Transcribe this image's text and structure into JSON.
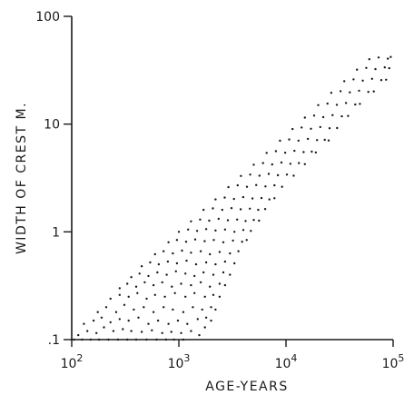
{
  "chart_data": {
    "type": "scatter",
    "title": "",
    "xlabel": "AGE-YEARS",
    "ylabel": "WIDTH OF CREST M.",
    "x_scale": "log",
    "y_scale": "log",
    "xlim": [
      100,
      100000
    ],
    "ylim": [
      0.1,
      100
    ],
    "grid": false,
    "x_ticks": [
      {
        "value": 100,
        "base": "10",
        "exp": "2"
      },
      {
        "value": 1000,
        "base": "10",
        "exp": "3"
      },
      {
        "value": 10000,
        "base": "10",
        "exp": "4"
      },
      {
        "value": 100000,
        "base": "10",
        "exp": "5"
      }
    ],
    "y_ticks": [
      {
        "value": 0.1,
        "label": ".1"
      },
      {
        "value": 1,
        "label": "1"
      },
      {
        "value": 10,
        "label": "10"
      },
      {
        "value": 100,
        "label": "100"
      }
    ],
    "series": [
      {
        "marker": "dot",
        "color": "#1a1a1a",
        "points": [
          [
            105,
            0.1
          ],
          [
            125,
            0.1
          ],
          [
            150,
            0.1
          ],
          [
            180,
            0.1
          ],
          [
            220,
            0.1
          ],
          [
            270,
            0.1
          ],
          [
            330,
            0.1
          ],
          [
            400,
            0.1
          ],
          [
            500,
            0.1
          ],
          [
            620,
            0.1
          ],
          [
            760,
            0.1
          ],
          [
            900,
            0.1
          ],
          [
            1100,
            0.1
          ],
          [
            115,
            0.11
          ],
          [
            140,
            0.12
          ],
          [
            170,
            0.115
          ],
          [
            200,
            0.13
          ],
          [
            245,
            0.12
          ],
          [
            300,
            0.125
          ],
          [
            360,
            0.12
          ],
          [
            450,
            0.118
          ],
          [
            560,
            0.122
          ],
          [
            700,
            0.115
          ],
          [
            850,
            0.118
          ],
          [
            1050,
            0.115
          ],
          [
            1300,
            0.12
          ],
          [
            1550,
            0.11
          ],
          [
            1750,
            0.13
          ],
          [
            130,
            0.14
          ],
          [
            160,
            0.15
          ],
          [
            190,
            0.16
          ],
          [
            230,
            0.145
          ],
          [
            280,
            0.155
          ],
          [
            340,
            0.15
          ],
          [
            420,
            0.16
          ],
          [
            520,
            0.14
          ],
          [
            640,
            0.15
          ],
          [
            800,
            0.14
          ],
          [
            980,
            0.15
          ],
          [
            1200,
            0.14
          ],
          [
            1500,
            0.155
          ],
          [
            1800,
            0.16
          ],
          [
            2000,
            0.15
          ],
          [
            175,
            0.18
          ],
          [
            210,
            0.2
          ],
          [
            260,
            0.18
          ],
          [
            310,
            0.21
          ],
          [
            380,
            0.19
          ],
          [
            470,
            0.2
          ],
          [
            580,
            0.18
          ],
          [
            720,
            0.2
          ],
          [
            880,
            0.19
          ],
          [
            1100,
            0.18
          ],
          [
            1350,
            0.2
          ],
          [
            1650,
            0.19
          ],
          [
            2000,
            0.2
          ],
          [
            2200,
            0.19
          ],
          [
            230,
            0.24
          ],
          [
            280,
            0.26
          ],
          [
            340,
            0.25
          ],
          [
            410,
            0.27
          ],
          [
            500,
            0.24
          ],
          [
            600,
            0.26
          ],
          [
            740,
            0.25
          ],
          [
            920,
            0.27
          ],
          [
            1150,
            0.25
          ],
          [
            1400,
            0.27
          ],
          [
            1750,
            0.25
          ],
          [
            2100,
            0.26
          ],
          [
            2400,
            0.25
          ],
          [
            280,
            0.3
          ],
          [
            330,
            0.33
          ],
          [
            400,
            0.31
          ],
          [
            480,
            0.34
          ],
          [
            580,
            0.32
          ],
          [
            700,
            0.34
          ],
          [
            860,
            0.31
          ],
          [
            1050,
            0.33
          ],
          [
            1300,
            0.32
          ],
          [
            1600,
            0.34
          ],
          [
            1950,
            0.31
          ],
          [
            2400,
            0.33
          ],
          [
            2700,
            0.32
          ],
          [
            360,
            0.38
          ],
          [
            430,
            0.41
          ],
          [
            520,
            0.39
          ],
          [
            630,
            0.42
          ],
          [
            770,
            0.4
          ],
          [
            940,
            0.43
          ],
          [
            1150,
            0.41
          ],
          [
            1400,
            0.39
          ],
          [
            1700,
            0.42
          ],
          [
            2100,
            0.4
          ],
          [
            2600,
            0.42
          ],
          [
            3000,
            0.4
          ],
          [
            450,
            0.48
          ],
          [
            540,
            0.52
          ],
          [
            650,
            0.5
          ],
          [
            790,
            0.53
          ],
          [
            960,
            0.51
          ],
          [
            1180,
            0.54
          ],
          [
            1450,
            0.5
          ],
          [
            1800,
            0.52
          ],
          [
            2200,
            0.5
          ],
          [
            2700,
            0.53
          ],
          [
            3300,
            0.51
          ],
          [
            600,
            0.62
          ],
          [
            720,
            0.66
          ],
          [
            880,
            0.63
          ],
          [
            1070,
            0.67
          ],
          [
            1300,
            0.64
          ],
          [
            1600,
            0.66
          ],
          [
            1950,
            0.62
          ],
          [
            2400,
            0.65
          ],
          [
            3000,
            0.63
          ],
          [
            3600,
            0.66
          ],
          [
            800,
            0.8
          ],
          [
            960,
            0.84
          ],
          [
            1170,
            0.81
          ],
          [
            1420,
            0.85
          ],
          [
            1740,
            0.82
          ],
          [
            2120,
            0.84
          ],
          [
            2600,
            0.8
          ],
          [
            3200,
            0.83
          ],
          [
            3900,
            0.81
          ],
          [
            4300,
            0.84
          ],
          [
            1000,
            1.0
          ],
          [
            1220,
            1.05
          ],
          [
            1480,
            1.02
          ],
          [
            1800,
            1.06
          ],
          [
            2200,
            1.03
          ],
          [
            2700,
            1.05
          ],
          [
            3300,
            1.0
          ],
          [
            4000,
            1.04
          ],
          [
            4700,
            1.02
          ],
          [
            1300,
            1.25
          ],
          [
            1580,
            1.3
          ],
          [
            1920,
            1.27
          ],
          [
            2350,
            1.32
          ],
          [
            2870,
            1.28
          ],
          [
            3500,
            1.3
          ],
          [
            4200,
            1.26
          ],
          [
            5000,
            1.29
          ],
          [
            5600,
            1.27
          ],
          [
            1700,
            1.6
          ],
          [
            2080,
            1.65
          ],
          [
            2540,
            1.6
          ],
          [
            3100,
            1.66
          ],
          [
            3780,
            1.62
          ],
          [
            4600,
            1.64
          ],
          [
            5500,
            1.6
          ],
          [
            6400,
            1.63
          ],
          [
            2200,
            2.0
          ],
          [
            2680,
            2.08
          ],
          [
            3270,
            2.02
          ],
          [
            3990,
            2.1
          ],
          [
            4870,
            2.04
          ],
          [
            5900,
            2.06
          ],
          [
            7000,
            2.0
          ],
          [
            7800,
            2.05
          ],
          [
            2900,
            2.6
          ],
          [
            3540,
            2.7
          ],
          [
            4320,
            2.62
          ],
          [
            5270,
            2.72
          ],
          [
            6430,
            2.64
          ],
          [
            7800,
            2.7
          ],
          [
            9200,
            2.62
          ],
          [
            3800,
            3.3
          ],
          [
            4640,
            3.4
          ],
          [
            5660,
            3.32
          ],
          [
            6900,
            3.45
          ],
          [
            8400,
            3.35
          ],
          [
            10200,
            3.4
          ],
          [
            11800,
            3.32
          ],
          [
            5000,
            4.2
          ],
          [
            6100,
            4.35
          ],
          [
            7440,
            4.22
          ],
          [
            9070,
            4.4
          ],
          [
            11000,
            4.28
          ],
          [
            13200,
            4.35
          ],
          [
            15000,
            4.25
          ],
          [
            6600,
            5.4
          ],
          [
            8050,
            5.6
          ],
          [
            9820,
            5.42
          ],
          [
            12000,
            5.65
          ],
          [
            14600,
            5.5
          ],
          [
            17400,
            5.55
          ],
          [
            19000,
            5.45
          ],
          [
            8800,
            7.0
          ],
          [
            10700,
            7.2
          ],
          [
            13100,
            7.02
          ],
          [
            16000,
            7.3
          ],
          [
            19500,
            7.1
          ],
          [
            23000,
            7.15
          ],
          [
            25000,
            7.05
          ],
          [
            11500,
            9.0
          ],
          [
            14000,
            9.3
          ],
          [
            17100,
            9.05
          ],
          [
            20900,
            9.4
          ],
          [
            25500,
            9.15
          ],
          [
            30000,
            9.2
          ],
          [
            15000,
            11.5
          ],
          [
            18300,
            12.0
          ],
          [
            22300,
            11.6
          ],
          [
            27200,
            12.1
          ],
          [
            33200,
            11.8
          ],
          [
            38000,
            11.9
          ],
          [
            20000,
            15.0
          ],
          [
            24400,
            15.5
          ],
          [
            29800,
            15.1
          ],
          [
            36300,
            15.7
          ],
          [
            44300,
            15.2
          ],
          [
            49000,
            15.4
          ],
          [
            26500,
            19.5
          ],
          [
            32300,
            20.2
          ],
          [
            39400,
            19.7
          ],
          [
            48100,
            20.4
          ],
          [
            58700,
            19.9
          ],
          [
            66000,
            20.1
          ],
          [
            35000,
            25.0
          ],
          [
            42700,
            26.0
          ],
          [
            52100,
            25.3
          ],
          [
            63600,
            26.3
          ],
          [
            77600,
            25.6
          ],
          [
            86000,
            25.8
          ],
          [
            46000,
            32.0
          ],
          [
            56100,
            33.2
          ],
          [
            68400,
            32.4
          ],
          [
            83500,
            33.6
          ],
          [
            92000,
            33.0
          ],
          [
            60000,
            40.0
          ],
          [
            73200,
            41.5
          ],
          [
            89300,
            40.5
          ],
          [
            95000,
            42.0
          ]
        ]
      }
    ]
  }
}
